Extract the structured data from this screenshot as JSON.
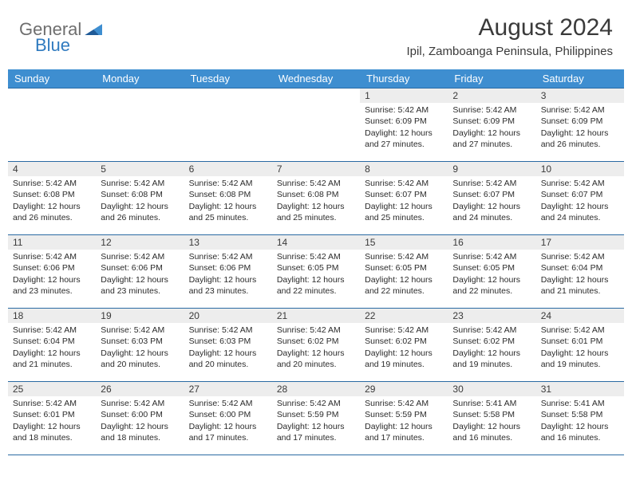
{
  "brand": {
    "part1": "General",
    "part2": "Blue"
  },
  "header": {
    "month_title": "August 2024",
    "location": "Ipil, Zamboanga Peninsula, Philippines"
  },
  "colors": {
    "header_bg": "#3e8ed0",
    "header_border": "#2a6aa3",
    "daynum_bg": "#ededed",
    "text": "#2b2b2b"
  },
  "fonts": {
    "month_title_pt": 30,
    "location_pt": 15,
    "weekday_pt": 13,
    "daynum_pt": 12,
    "body_pt": 10.5
  },
  "weekdays": [
    "Sunday",
    "Monday",
    "Tuesday",
    "Wednesday",
    "Thursday",
    "Friday",
    "Saturday"
  ],
  "grid": {
    "rows": 5,
    "cols": 7,
    "first_day_col": 4,
    "days_in_month": 31
  },
  "days": [
    {
      "n": 1,
      "sunrise": "5:42 AM",
      "sunset": "6:09 PM",
      "daylight": "12 hours and 27 minutes."
    },
    {
      "n": 2,
      "sunrise": "5:42 AM",
      "sunset": "6:09 PM",
      "daylight": "12 hours and 27 minutes."
    },
    {
      "n": 3,
      "sunrise": "5:42 AM",
      "sunset": "6:09 PM",
      "daylight": "12 hours and 26 minutes."
    },
    {
      "n": 4,
      "sunrise": "5:42 AM",
      "sunset": "6:08 PM",
      "daylight": "12 hours and 26 minutes."
    },
    {
      "n": 5,
      "sunrise": "5:42 AM",
      "sunset": "6:08 PM",
      "daylight": "12 hours and 26 minutes."
    },
    {
      "n": 6,
      "sunrise": "5:42 AM",
      "sunset": "6:08 PM",
      "daylight": "12 hours and 25 minutes."
    },
    {
      "n": 7,
      "sunrise": "5:42 AM",
      "sunset": "6:08 PM",
      "daylight": "12 hours and 25 minutes."
    },
    {
      "n": 8,
      "sunrise": "5:42 AM",
      "sunset": "6:07 PM",
      "daylight": "12 hours and 25 minutes."
    },
    {
      "n": 9,
      "sunrise": "5:42 AM",
      "sunset": "6:07 PM",
      "daylight": "12 hours and 24 minutes."
    },
    {
      "n": 10,
      "sunrise": "5:42 AM",
      "sunset": "6:07 PM",
      "daylight": "12 hours and 24 minutes."
    },
    {
      "n": 11,
      "sunrise": "5:42 AM",
      "sunset": "6:06 PM",
      "daylight": "12 hours and 23 minutes."
    },
    {
      "n": 12,
      "sunrise": "5:42 AM",
      "sunset": "6:06 PM",
      "daylight": "12 hours and 23 minutes."
    },
    {
      "n": 13,
      "sunrise": "5:42 AM",
      "sunset": "6:06 PM",
      "daylight": "12 hours and 23 minutes."
    },
    {
      "n": 14,
      "sunrise": "5:42 AM",
      "sunset": "6:05 PM",
      "daylight": "12 hours and 22 minutes."
    },
    {
      "n": 15,
      "sunrise": "5:42 AM",
      "sunset": "6:05 PM",
      "daylight": "12 hours and 22 minutes."
    },
    {
      "n": 16,
      "sunrise": "5:42 AM",
      "sunset": "6:05 PM",
      "daylight": "12 hours and 22 minutes."
    },
    {
      "n": 17,
      "sunrise": "5:42 AM",
      "sunset": "6:04 PM",
      "daylight": "12 hours and 21 minutes."
    },
    {
      "n": 18,
      "sunrise": "5:42 AM",
      "sunset": "6:04 PM",
      "daylight": "12 hours and 21 minutes."
    },
    {
      "n": 19,
      "sunrise": "5:42 AM",
      "sunset": "6:03 PM",
      "daylight": "12 hours and 20 minutes."
    },
    {
      "n": 20,
      "sunrise": "5:42 AM",
      "sunset": "6:03 PM",
      "daylight": "12 hours and 20 minutes."
    },
    {
      "n": 21,
      "sunrise": "5:42 AM",
      "sunset": "6:02 PM",
      "daylight": "12 hours and 20 minutes."
    },
    {
      "n": 22,
      "sunrise": "5:42 AM",
      "sunset": "6:02 PM",
      "daylight": "12 hours and 19 minutes."
    },
    {
      "n": 23,
      "sunrise": "5:42 AM",
      "sunset": "6:02 PM",
      "daylight": "12 hours and 19 minutes."
    },
    {
      "n": 24,
      "sunrise": "5:42 AM",
      "sunset": "6:01 PM",
      "daylight": "12 hours and 19 minutes."
    },
    {
      "n": 25,
      "sunrise": "5:42 AM",
      "sunset": "6:01 PM",
      "daylight": "12 hours and 18 minutes."
    },
    {
      "n": 26,
      "sunrise": "5:42 AM",
      "sunset": "6:00 PM",
      "daylight": "12 hours and 18 minutes."
    },
    {
      "n": 27,
      "sunrise": "5:42 AM",
      "sunset": "6:00 PM",
      "daylight": "12 hours and 17 minutes."
    },
    {
      "n": 28,
      "sunrise": "5:42 AM",
      "sunset": "5:59 PM",
      "daylight": "12 hours and 17 minutes."
    },
    {
      "n": 29,
      "sunrise": "5:42 AM",
      "sunset": "5:59 PM",
      "daylight": "12 hours and 17 minutes."
    },
    {
      "n": 30,
      "sunrise": "5:41 AM",
      "sunset": "5:58 PM",
      "daylight": "12 hours and 16 minutes."
    },
    {
      "n": 31,
      "sunrise": "5:41 AM",
      "sunset": "5:58 PM",
      "daylight": "12 hours and 16 minutes."
    }
  ],
  "labels": {
    "sunrise": "Sunrise:",
    "sunset": "Sunset:",
    "daylight": "Daylight:"
  }
}
